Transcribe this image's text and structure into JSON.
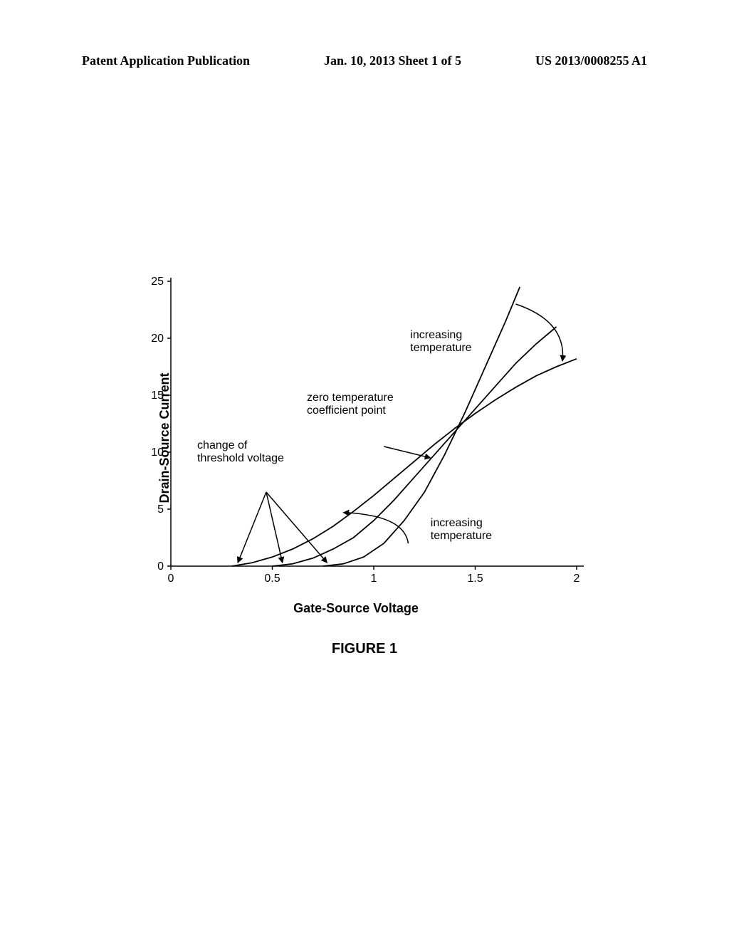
{
  "header": {
    "left": "Patent Application Publication",
    "center": "Jan. 10, 2013  Sheet 1 of 5",
    "right": "US 2013/0008255 A1"
  },
  "chart": {
    "type": "line",
    "y_axis": {
      "label": "Drain-Source Current",
      "min": 0,
      "max": 25,
      "ticks": [
        0,
        5,
        10,
        15,
        20,
        25
      ]
    },
    "x_axis": {
      "label": "Gate-Source Voltage",
      "min": 0,
      "max": 2,
      "ticks": [
        0,
        0.5,
        1,
        1.5,
        2
      ]
    },
    "curves": [
      {
        "comment": "low temperature curve (steepest after ZTC)",
        "points": [
          [
            0.75,
            0
          ],
          [
            0.85,
            0.2
          ],
          [
            0.95,
            0.8
          ],
          [
            1.05,
            2.0
          ],
          [
            1.15,
            4.0
          ],
          [
            1.25,
            6.5
          ],
          [
            1.35,
            9.8
          ],
          [
            1.45,
            13.5
          ],
          [
            1.55,
            17.5
          ],
          [
            1.65,
            21.5
          ],
          [
            1.72,
            24.5
          ]
        ]
      },
      {
        "comment": "medium temperature curve",
        "points": [
          [
            0.5,
            0
          ],
          [
            0.6,
            0.2
          ],
          [
            0.7,
            0.7
          ],
          [
            0.8,
            1.5
          ],
          [
            0.9,
            2.5
          ],
          [
            1.0,
            4.0
          ],
          [
            1.1,
            5.8
          ],
          [
            1.2,
            7.8
          ],
          [
            1.3,
            9.8
          ],
          [
            1.4,
            11.8
          ],
          [
            1.5,
            13.8
          ],
          [
            1.6,
            15.8
          ],
          [
            1.7,
            17.8
          ],
          [
            1.8,
            19.5
          ],
          [
            1.9,
            21.0
          ]
        ]
      },
      {
        "comment": "high temperature curve (shallowest after ZTC)",
        "points": [
          [
            0.3,
            0
          ],
          [
            0.4,
            0.3
          ],
          [
            0.5,
            0.8
          ],
          [
            0.6,
            1.5
          ],
          [
            0.7,
            2.4
          ],
          [
            0.8,
            3.5
          ],
          [
            0.9,
            4.8
          ],
          [
            1.0,
            6.2
          ],
          [
            1.1,
            7.7
          ],
          [
            1.2,
            9.2
          ],
          [
            1.3,
            10.7
          ],
          [
            1.4,
            12.1
          ],
          [
            1.5,
            13.4
          ],
          [
            1.6,
            14.6
          ],
          [
            1.7,
            15.7
          ],
          [
            1.8,
            16.7
          ],
          [
            1.9,
            17.5
          ],
          [
            2.0,
            18.2
          ]
        ]
      }
    ],
    "annotations": {
      "change_threshold": {
        "line1": "change of",
        "line2": "threshold voltage"
      },
      "ztc": {
        "line1": "zero temperature",
        "line2": "coefficient point"
      },
      "inc_temp_top": "increasing\ntemperature",
      "inc_temp_bottom": "increasing\ntemperature"
    },
    "ztc_arrow": {
      "from": [
        1.05,
        10.5
      ],
      "to": [
        1.28,
        9.5
      ]
    },
    "threshold_arrows": [
      {
        "from": [
          0.47,
          6.5
        ],
        "to": [
          0.33,
          0.3
        ]
      },
      {
        "from": [
          0.47,
          6.5
        ],
        "to": [
          0.55,
          0.3
        ]
      },
      {
        "from": [
          0.47,
          6.5
        ],
        "to": [
          0.77,
          0.3
        ]
      }
    ],
    "temp_arc_top": {
      "start": [
        1.7,
        23.0
      ],
      "end": [
        1.93,
        18.0
      ],
      "control": [
        1.95,
        21.5
      ],
      "arrow_at": "end"
    },
    "temp_arc_bottom": {
      "start": [
        0.85,
        4.7
      ],
      "end": [
        1.17,
        2.0
      ],
      "control": [
        1.15,
        4.5
      ],
      "arrow_at": "start"
    },
    "colors": {
      "line": "#000000",
      "axis": "#000000",
      "background": "#ffffff"
    },
    "line_width": 1.8
  },
  "figure_label": "FIGURE 1"
}
